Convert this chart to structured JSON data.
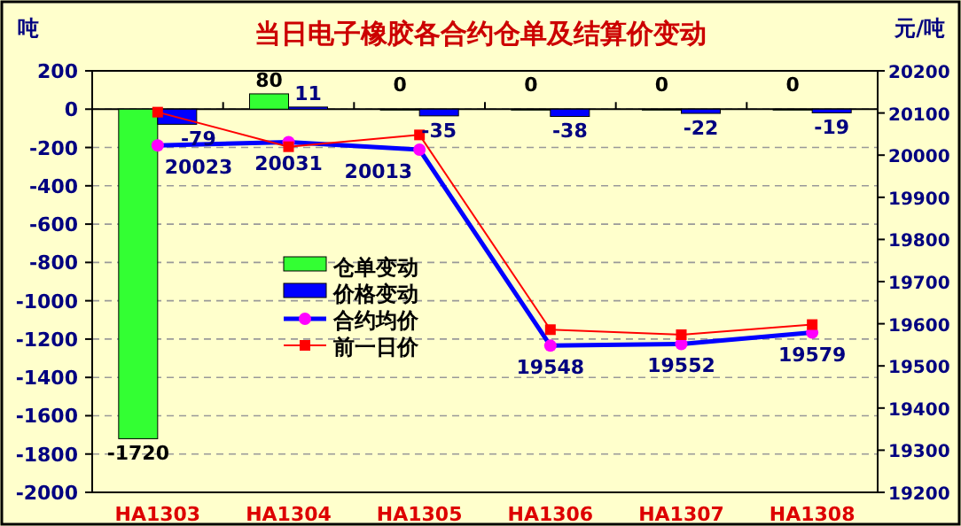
{
  "chart_data": {
    "type": "bar",
    "title": "当日电子橡胶各合约仓单及结算价变动",
    "ylabel": "吨",
    "y2label": "元/吨",
    "categories": [
      "HA1303",
      "HA1304",
      "HA1305",
      "HA1306",
      "HA1307",
      "HA1308"
    ],
    "series": [
      {
        "name": "仓单变动",
        "type": "bar",
        "color": "#33ff33",
        "values": [
          -1720,
          80,
          0,
          0,
          0,
          0
        ],
        "value_labels": [
          "-1720",
          "80",
          "0",
          "0",
          "0",
          "0"
        ]
      },
      {
        "name": "价格变动",
        "type": "bar",
        "color": "#0000ff",
        "values": [
          -79,
          11,
          -35,
          -38,
          -22,
          -19
        ],
        "value_labels": [
          "-79",
          "11",
          "-35",
          "-38",
          "-22",
          "-19"
        ]
      },
      {
        "name": "合约均价",
        "type": "line",
        "axis": "y2",
        "color": "#0000ff",
        "marker": "circle",
        "values": [
          20023,
          20031,
          20013,
          19548,
          19552,
          19579
        ],
        "value_labels": [
          "20023",
          "20031",
          "20013",
          "19548",
          "19552",
          "19579"
        ]
      },
      {
        "name": "前一日价",
        "type": "line",
        "axis": "y2",
        "color": "#ff0000",
        "marker": "square",
        "values": [
          20102,
          20020,
          20048,
          19586,
          19574,
          19598
        ]
      }
    ],
    "ylim": [
      -2000,
      200
    ],
    "yticks": [
      -2000,
      -1800,
      -1600,
      -1400,
      -1200,
      -1000,
      -800,
      -600,
      -400,
      -200,
      0,
      200
    ],
    "y2lim": [
      19200,
      20200
    ],
    "y2ticks": [
      19200,
      19300,
      19400,
      19500,
      19600,
      19700,
      19800,
      19900,
      20000,
      20100,
      20200
    ],
    "grid": "y",
    "legend": "center"
  }
}
